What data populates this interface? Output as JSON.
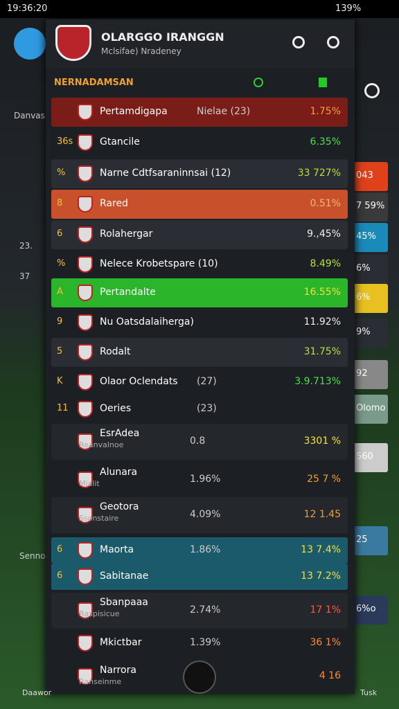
{
  "status_bar": {
    "time": "19:36:20",
    "battery": "139%"
  },
  "header": {
    "title": "OLARGGO IRANGGN",
    "subtitle": "Mclsifae) Nradeney"
  },
  "section_label": "NERNADAMSAN",
  "rows": [
    {
      "name": "Pertamdigapa",
      "mid": "Nielae (23)",
      "value": "1.75%"
    },
    {
      "rank": "36s",
      "name": "Gtancile",
      "value": "6.35%"
    },
    {
      "rank": "%",
      "name": "Narne Cdtfsaraninnsai (12)",
      "value": "33 727%"
    },
    {
      "rank": "8",
      "name": "Rared",
      "value": "0.51%"
    },
    {
      "rank": "6",
      "name": "Rolahergar",
      "value": "9.,45%"
    },
    {
      "rank": "%",
      "name": "Nelece Krobetspare (10)",
      "value": "8.49%"
    },
    {
      "rank": "A",
      "name": "Pertandalte",
      "value": "16.55%"
    },
    {
      "rank": "9",
      "name": "Nu Oatsdalaiherga)",
      "value": "11.92%"
    },
    {
      "rank": "5",
      "name": "Rodalt",
      "value": "31.75%"
    },
    {
      "rank": "K",
      "name": "Olaor Oclendats",
      "mid": "(27)",
      "value": "3.9.713%"
    },
    {
      "rank": "11",
      "name": "Oeries",
      "mid": "(23)"
    },
    {
      "name": "EsrAdea",
      "sub": "Reanvalnoe",
      "mid": "0.8",
      "value": "3301 %"
    },
    {
      "name": "Alunara",
      "sub": "Mialit",
      "mid": "1.96%",
      "value": "25 7 %"
    },
    {
      "name": "Geotora",
      "sub": "Ssonstaire",
      "mid": "4.09%",
      "value": "12 1.45"
    },
    {
      "rank": "6",
      "name": "Maorta",
      "mid": "1.86%",
      "value": "13 7.4%"
    },
    {
      "rank": "6",
      "name": "Sabitanae",
      "value": "13 7.2%"
    },
    {
      "name": "Sbanpaaa",
      "sub": "Raspisicue",
      "mid": "2.74%",
      "value": "17 1%"
    },
    {
      "name": "Mkictbar",
      "mid": "1.39%",
      "value": "36 1%"
    },
    {
      "name": "Narrora",
      "sub": "Ranseinme",
      "value": "4 16"
    }
  ],
  "right_column": [
    "043",
    "7 59%",
    "45%",
    "6%",
    "6%",
    "9%",
    "92",
    "Olomo",
    "560",
    "25",
    "6%o"
  ],
  "left_column": [
    "Danvas",
    "23.",
    "37",
    "Senno"
  ],
  "bottom_nav": [
    "Daawor",
    "Tusk"
  ]
}
